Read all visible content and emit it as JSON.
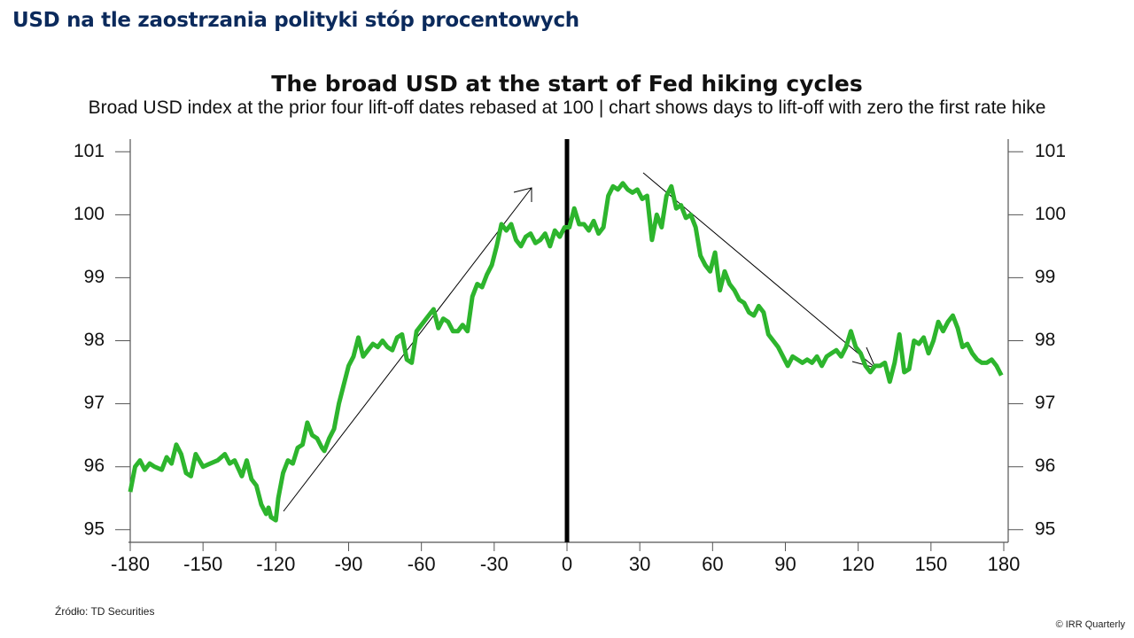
{
  "header": {
    "title": "USD na tle zaostrzania polityki stóp procentowych"
  },
  "footer": {
    "source": "Źródło: TD Securities",
    "copyright": "© IRR Quarterly"
  },
  "chart_data": {
    "type": "line",
    "title": "The broad USD at the start of Fed hiking cycles",
    "subtitle": "Broad USD index at the prior four lift-off dates rebased at 100 | chart shows days to lift-off with zero the first rate hike",
    "x": [
      -180,
      -178,
      -176,
      -174,
      -172,
      -170,
      -167,
      -165,
      -163,
      -161,
      -159,
      -157,
      -155,
      -153,
      -150,
      -147,
      -144,
      -141,
      -139,
      -137,
      -134,
      -132,
      -130,
      -128,
      -126,
      -124,
      -123,
      -122,
      -120,
      -119,
      -117,
      -115,
      -113,
      -111,
      -109,
      -107,
      -105,
      -103,
      -101,
      -100,
      -98,
      -96,
      -94,
      -92,
      -90,
      -88,
      -86,
      -84,
      -82,
      -80,
      -78,
      -76,
      -74,
      -72,
      -70,
      -68,
      -66,
      -64,
      -62,
      -60,
      -58,
      -56,
      -55,
      -53,
      -51,
      -49,
      -47,
      -45,
      -43,
      -41,
      -39,
      -37,
      -35,
      -33,
      -31,
      -29,
      -27,
      -25,
      -23,
      -21,
      -19,
      -17,
      -15,
      -13,
      -11,
      -9,
      -7,
      -5,
      -3,
      -1,
      1,
      3,
      5,
      7,
      9,
      11,
      13,
      15,
      17,
      19,
      21,
      23,
      25,
      27,
      29,
      31,
      33,
      35,
      37,
      39,
      41,
      43,
      45,
      47,
      49,
      51,
      53,
      55,
      57,
      59,
      61,
      63,
      65,
      67,
      69,
      71,
      73,
      75,
      77,
      79,
      81,
      83,
      85,
      87,
      89,
      91,
      93,
      95,
      97,
      99,
      101,
      103,
      105,
      107,
      109,
      111,
      113,
      115,
      117,
      119,
      121,
      123,
      125,
      127,
      129,
      131,
      133,
      135,
      137,
      139,
      141,
      143,
      145,
      147,
      149,
      151,
      153,
      155,
      157,
      159,
      161,
      163,
      165,
      167,
      169,
      171,
      173,
      175,
      177,
      179
    ],
    "series": [
      {
        "name": "Broad USD index",
        "color": "#2db52d",
        "values": [
          95.6,
          96.0,
          96.1,
          95.95,
          96.05,
          96.0,
          95.95,
          96.15,
          96.05,
          96.35,
          96.2,
          95.9,
          95.85,
          96.2,
          96.0,
          96.05,
          96.1,
          96.2,
          96.05,
          96.1,
          95.85,
          96.1,
          95.8,
          95.7,
          95.4,
          95.25,
          95.35,
          95.2,
          95.15,
          95.5,
          95.9,
          96.1,
          96.05,
          96.3,
          96.35,
          96.7,
          96.5,
          96.45,
          96.3,
          96.25,
          96.45,
          96.6,
          97.0,
          97.3,
          97.6,
          97.75,
          98.05,
          97.75,
          97.85,
          97.95,
          97.9,
          98.0,
          97.9,
          97.85,
          98.05,
          98.1,
          97.7,
          97.65,
          98.15,
          98.25,
          98.35,
          98.45,
          98.5,
          98.2,
          98.35,
          98.3,
          98.15,
          98.15,
          98.25,
          98.15,
          98.7,
          98.9,
          98.85,
          99.05,
          99.2,
          99.5,
          99.85,
          99.75,
          99.85,
          99.6,
          99.5,
          99.65,
          99.7,
          99.55,
          99.6,
          99.7,
          99.5,
          99.75,
          99.65,
          99.8,
          99.8,
          100.1,
          99.85,
          99.85,
          99.75,
          99.9,
          99.7,
          99.8,
          100.3,
          100.45,
          100.4,
          100.5,
          100.4,
          100.35,
          100.4,
          100.25,
          100.3,
          99.6,
          100.0,
          99.8,
          100.3,
          100.45,
          100.1,
          100.15,
          99.95,
          100.0,
          99.8,
          99.35,
          99.2,
          99.1,
          99.4,
          98.8,
          99.1,
          98.9,
          98.8,
          98.65,
          98.6,
          98.45,
          98.4,
          98.55,
          98.45,
          98.1,
          98.0,
          97.9,
          97.75,
          97.6,
          97.75,
          97.7,
          97.65,
          97.7,
          97.65,
          97.75,
          97.6,
          97.75,
          97.8,
          97.85,
          97.75,
          97.9,
          98.15,
          97.9,
          97.8,
          97.6,
          97.5,
          97.6,
          97.6,
          97.65,
          97.35,
          97.65,
          98.1,
          97.5,
          97.55,
          98.0,
          97.95,
          98.05,
          97.8,
          98.0,
          98.3,
          98.15,
          98.3,
          98.4,
          98.2,
          97.9,
          97.95,
          97.8,
          97.7,
          97.65,
          97.65,
          97.7,
          97.6,
          97.45
        ]
      }
    ],
    "xlim": [
      -180,
      180
    ],
    "xticks": [
      -180,
      -150,
      -120,
      -90,
      -60,
      -30,
      0,
      30,
      60,
      90,
      120,
      150,
      180
    ],
    "ylim": [
      94.8,
      101.2
    ],
    "yticks": [
      95,
      96,
      97,
      98,
      99,
      100,
      101
    ],
    "y2lim": [
      94.8,
      101.2
    ],
    "y2ticks": [
      95,
      96,
      97,
      98,
      99,
      100,
      101
    ]
  }
}
